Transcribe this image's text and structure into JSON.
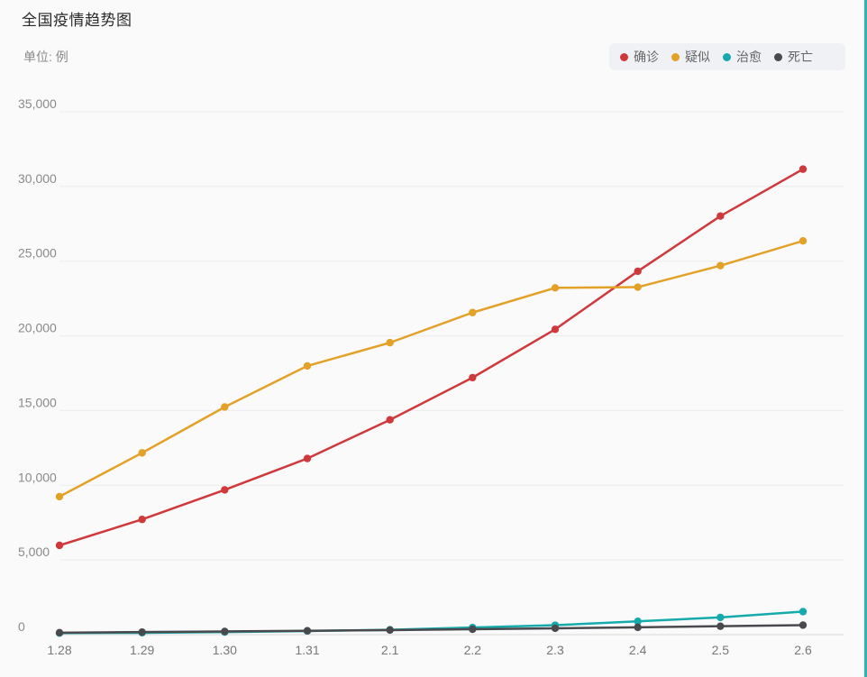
{
  "header": {
    "title": "全国疫情趋势图",
    "unit": "单位: 例"
  },
  "chart_data": {
    "type": "line",
    "title": "全国疫情趋势图",
    "ylabel": "单位: 例",
    "categories": [
      "1.28",
      "1.29",
      "1.30",
      "1.31",
      "2.1",
      "2.2",
      "2.3",
      "2.4",
      "2.5",
      "2.6"
    ],
    "y_ticks": [
      "0",
      "5,000",
      "10,000",
      "15,000",
      "20,000",
      "25,000",
      "30,000",
      "35,000"
    ],
    "ylim": [
      0,
      35000
    ],
    "grid": true,
    "legend_position": "top-right",
    "series": [
      {
        "name": "确诊",
        "color": "#d0393b",
        "values": [
          5974,
          7711,
          9692,
          11791,
          14380,
          17205,
          20438,
          24324,
          28018,
          31161
        ]
      },
      {
        "name": "疑似",
        "color": "#e3a127",
        "values": [
          9239,
          12167,
          15238,
          17988,
          19544,
          21558,
          23214,
          23260,
          24702,
          26359
        ]
      },
      {
        "name": "治愈",
        "color": "#16aaac",
        "values": [
          103,
          124,
          171,
          243,
          328,
          475,
          632,
          892,
          1153,
          1540
        ]
      },
      {
        "name": "死亡",
        "color": "#4a4a4e",
        "values": [
          132,
          170,
          213,
          259,
          304,
          361,
          425,
          490,
          563,
          636
        ]
      }
    ]
  }
}
